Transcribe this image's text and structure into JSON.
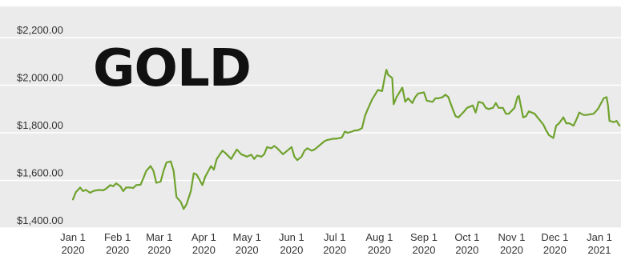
{
  "chart_data": {
    "type": "line",
    "title": "GOLD",
    "xlabel": "",
    "ylabel": "",
    "grid": true,
    "ylim": [
      1400,
      2200
    ],
    "xlim": [
      "2020-01-01",
      "2021-01-16"
    ],
    "colors": {
      "background": "#ebebeb",
      "grid": "#ffffff",
      "line": "#6fa22d",
      "text": "#333333"
    },
    "y_ticks": [
      {
        "value": 1400,
        "label": "$1,400.00"
      },
      {
        "value": 1600,
        "label": "$1,600.00"
      },
      {
        "value": 1800,
        "label": "$1,800.00"
      },
      {
        "value": 2000,
        "label": "$2,000.00"
      },
      {
        "value": 2200,
        "label": "$2,200.00"
      }
    ],
    "x_ticks": [
      {
        "date": "2020-01-01",
        "month": "Jan 1",
        "year": "2020"
      },
      {
        "date": "2020-02-01",
        "month": "Feb 1",
        "year": "2020"
      },
      {
        "date": "2020-03-01",
        "month": "Mar 1",
        "year": "2020"
      },
      {
        "date": "2020-04-01",
        "month": "Apr 1",
        "year": "2020"
      },
      {
        "date": "2020-05-01",
        "month": "May 1",
        "year": "2020"
      },
      {
        "date": "2020-06-01",
        "month": "Jun 1",
        "year": "2020"
      },
      {
        "date": "2020-07-01",
        "month": "Jul 1",
        "year": "2020"
      },
      {
        "date": "2020-08-01",
        "month": "Aug 1",
        "year": "2020"
      },
      {
        "date": "2020-09-01",
        "month": "Sep 1",
        "year": "2020"
      },
      {
        "date": "2020-10-01",
        "month": "Oct 1",
        "year": "2020"
      },
      {
        "date": "2020-11-01",
        "month": "Nov 1",
        "year": "2020"
      },
      {
        "date": "2020-12-01",
        "month": "Dec 1",
        "year": "2020"
      },
      {
        "date": "2021-01-01",
        "month": "Jan 1",
        "year": "2021"
      }
    ],
    "series": [
      {
        "points": [
          [
            "2020-01-01",
            1520
          ],
          [
            "2020-01-03",
            1550
          ],
          [
            "2020-01-06",
            1570
          ],
          [
            "2020-01-08",
            1555
          ],
          [
            "2020-01-10",
            1560
          ],
          [
            "2020-01-13",
            1548
          ],
          [
            "2020-01-15",
            1555
          ],
          [
            "2020-01-17",
            1558
          ],
          [
            "2020-01-20",
            1560
          ],
          [
            "2020-01-22",
            1558
          ],
          [
            "2020-01-24",
            1565
          ],
          [
            "2020-01-27",
            1580
          ],
          [
            "2020-01-29",
            1575
          ],
          [
            "2020-01-31",
            1588
          ],
          [
            "2020-02-03",
            1575
          ],
          [
            "2020-02-05",
            1555
          ],
          [
            "2020-02-07",
            1570
          ],
          [
            "2020-02-10",
            1570
          ],
          [
            "2020-02-12",
            1568
          ],
          [
            "2020-02-14",
            1580
          ],
          [
            "2020-02-17",
            1582
          ],
          [
            "2020-02-19",
            1610
          ],
          [
            "2020-02-21",
            1640
          ],
          [
            "2020-02-24",
            1660
          ],
          [
            "2020-02-26",
            1640
          ],
          [
            "2020-02-28",
            1590
          ],
          [
            "2020-03-02",
            1595
          ],
          [
            "2020-03-04",
            1640
          ],
          [
            "2020-03-06",
            1675
          ],
          [
            "2020-03-09",
            1680
          ],
          [
            "2020-03-11",
            1640
          ],
          [
            "2020-03-13",
            1530
          ],
          [
            "2020-03-16",
            1510
          ],
          [
            "2020-03-18",
            1480
          ],
          [
            "2020-03-20",
            1500
          ],
          [
            "2020-03-23",
            1555
          ],
          [
            "2020-03-25",
            1630
          ],
          [
            "2020-03-27",
            1625
          ],
          [
            "2020-03-31",
            1580
          ],
          [
            "2020-04-02",
            1615
          ],
          [
            "2020-04-06",
            1660
          ],
          [
            "2020-04-08",
            1645
          ],
          [
            "2020-04-10",
            1690
          ],
          [
            "2020-04-14",
            1725
          ],
          [
            "2020-04-16",
            1715
          ],
          [
            "2020-04-20",
            1690
          ],
          [
            "2020-04-22",
            1710
          ],
          [
            "2020-04-24",
            1730
          ],
          [
            "2020-04-27",
            1710
          ],
          [
            "2020-04-29",
            1705
          ],
          [
            "2020-05-01",
            1700
          ],
          [
            "2020-05-04",
            1708
          ],
          [
            "2020-05-06",
            1690
          ],
          [
            "2020-05-08",
            1705
          ],
          [
            "2020-05-11",
            1700
          ],
          [
            "2020-05-13",
            1710
          ],
          [
            "2020-05-15",
            1740
          ],
          [
            "2020-05-18",
            1735
          ],
          [
            "2020-05-20",
            1745
          ],
          [
            "2020-05-22",
            1735
          ],
          [
            "2020-05-26",
            1710
          ],
          [
            "2020-05-28",
            1720
          ],
          [
            "2020-06-01",
            1740
          ],
          [
            "2020-06-03",
            1700
          ],
          [
            "2020-06-05",
            1685
          ],
          [
            "2020-06-08",
            1700
          ],
          [
            "2020-06-10",
            1725
          ],
          [
            "2020-06-12",
            1735
          ],
          [
            "2020-06-15",
            1725
          ],
          [
            "2020-06-17",
            1730
          ],
          [
            "2020-06-19",
            1740
          ],
          [
            "2020-06-22",
            1755
          ],
          [
            "2020-06-24",
            1765
          ],
          [
            "2020-06-26",
            1770
          ],
          [
            "2020-06-30",
            1775
          ],
          [
            "2020-07-02",
            1775
          ],
          [
            "2020-07-06",
            1780
          ],
          [
            "2020-07-08",
            1805
          ],
          [
            "2020-07-10",
            1800
          ],
          [
            "2020-07-13",
            1805
          ],
          [
            "2020-07-15",
            1810
          ],
          [
            "2020-07-17",
            1810
          ],
          [
            "2020-07-20",
            1820
          ],
          [
            "2020-07-22",
            1870
          ],
          [
            "2020-07-24",
            1900
          ],
          [
            "2020-07-27",
            1940
          ],
          [
            "2020-07-29",
            1960
          ],
          [
            "2020-07-31",
            1980
          ],
          [
            "2020-08-03",
            1975
          ],
          [
            "2020-08-05",
            2040
          ],
          [
            "2020-08-06",
            2065
          ],
          [
            "2020-08-07",
            2045
          ],
          [
            "2020-08-10",
            2030
          ],
          [
            "2020-08-11",
            1920
          ],
          [
            "2020-08-13",
            1950
          ],
          [
            "2020-08-17",
            1990
          ],
          [
            "2020-08-19",
            1930
          ],
          [
            "2020-08-21",
            1945
          ],
          [
            "2020-08-24",
            1925
          ],
          [
            "2020-08-26",
            1950
          ],
          [
            "2020-08-28",
            1965
          ],
          [
            "2020-09-01",
            1970
          ],
          [
            "2020-09-03",
            1935
          ],
          [
            "2020-09-07",
            1930
          ],
          [
            "2020-09-09",
            1945
          ],
          [
            "2020-09-11",
            1945
          ],
          [
            "2020-09-14",
            1950
          ],
          [
            "2020-09-16",
            1960
          ],
          [
            "2020-09-18",
            1950
          ],
          [
            "2020-09-21",
            1900
          ],
          [
            "2020-09-23",
            1870
          ],
          [
            "2020-09-25",
            1865
          ],
          [
            "2020-09-29",
            1890
          ],
          [
            "2020-10-01",
            1905
          ],
          [
            "2020-10-05",
            1915
          ],
          [
            "2020-10-07",
            1885
          ],
          [
            "2020-10-09",
            1930
          ],
          [
            "2020-10-12",
            1925
          ],
          [
            "2020-10-14",
            1905
          ],
          [
            "2020-10-16",
            1900
          ],
          [
            "2020-10-19",
            1905
          ],
          [
            "2020-10-21",
            1925
          ],
          [
            "2020-10-23",
            1905
          ],
          [
            "2020-10-26",
            1905
          ],
          [
            "2020-10-28",
            1880
          ],
          [
            "2020-10-30",
            1880
          ],
          [
            "2020-11-03",
            1905
          ],
          [
            "2020-11-05",
            1950
          ],
          [
            "2020-11-06",
            1955
          ],
          [
            "2020-11-09",
            1865
          ],
          [
            "2020-11-11",
            1870
          ],
          [
            "2020-11-13",
            1890
          ],
          [
            "2020-11-17",
            1880
          ],
          [
            "2020-11-19",
            1865
          ],
          [
            "2020-11-23",
            1835
          ],
          [
            "2020-11-25",
            1810
          ],
          [
            "2020-11-27",
            1790
          ],
          [
            "2020-11-30",
            1778
          ],
          [
            "2020-12-02",
            1830
          ],
          [
            "2020-12-04",
            1840
          ],
          [
            "2020-12-07",
            1865
          ],
          [
            "2020-12-09",
            1840
          ],
          [
            "2020-12-11",
            1840
          ],
          [
            "2020-12-14",
            1830
          ],
          [
            "2020-12-16",
            1855
          ],
          [
            "2020-12-18",
            1885
          ],
          [
            "2020-12-21",
            1875
          ],
          [
            "2020-12-23",
            1875
          ],
          [
            "2020-12-28",
            1880
          ],
          [
            "2020-12-31",
            1900
          ],
          [
            "2021-01-04",
            1945
          ],
          [
            "2021-01-06",
            1950
          ],
          [
            "2021-01-07",
            1915
          ],
          [
            "2021-01-08",
            1850
          ],
          [
            "2021-01-11",
            1845
          ],
          [
            "2021-01-13",
            1850
          ],
          [
            "2021-01-15",
            1830
          ]
        ]
      }
    ]
  }
}
